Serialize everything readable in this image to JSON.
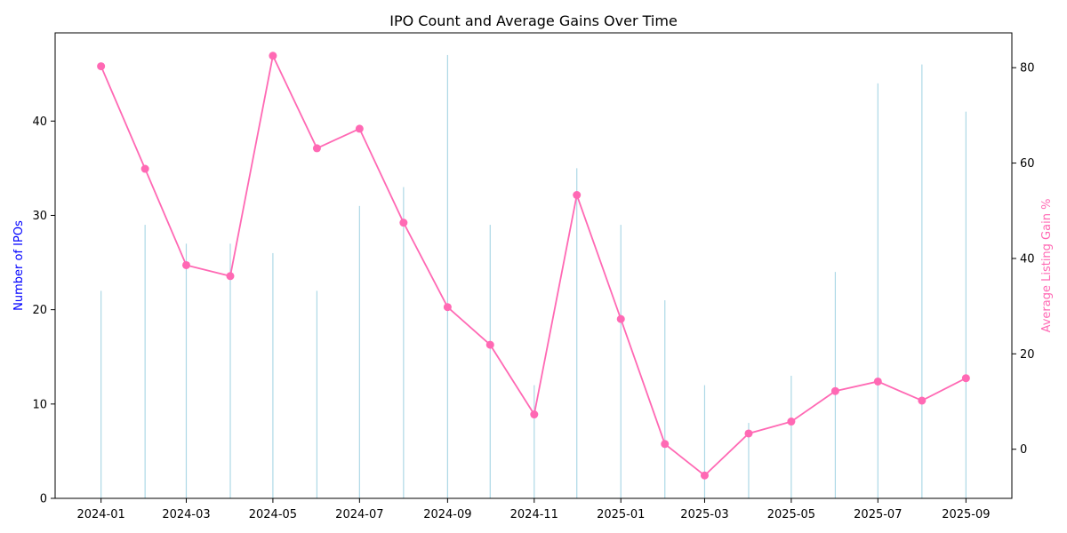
{
  "chart_data": {
    "type": "bar+line",
    "title": "IPO Count and Average Gains Over Time",
    "xlabel": "",
    "x": [
      "2024-01",
      "2024-02",
      "2024-03",
      "2024-04",
      "2024-05",
      "2024-06",
      "2024-07",
      "2024-08",
      "2024-09",
      "2024-10",
      "2024-11",
      "2024-12",
      "2025-01",
      "2025-02",
      "2025-03",
      "2025-04",
      "2025-05",
      "2025-06",
      "2025-07",
      "2025-08",
      "2025-09"
    ],
    "x_tick_labels": [
      "2024-01",
      "2024-03",
      "2024-05",
      "2024-07",
      "2024-09",
      "2024-11",
      "2025-01",
      "2025-03",
      "2025-05",
      "2025-07",
      "2025-09"
    ],
    "series": [
      {
        "axis": "left",
        "type": "bar",
        "color": "#add8e6",
        "values": [
          22,
          29,
          27,
          27,
          26,
          22,
          31,
          33,
          47,
          29,
          12,
          35,
          29,
          21,
          12,
          8,
          13,
          24,
          44,
          46,
          41
        ]
      },
      {
        "axis": "right",
        "type": "line",
        "color": "#ff69b4",
        "values": [
          80.3,
          58.8,
          38.6,
          36.3,
          82.5,
          63.1,
          67.2,
          47.5,
          29.8,
          21.9,
          7.3,
          53.3,
          27.3,
          1.1,
          -5.5,
          3.3,
          5.8,
          12.2,
          14.2,
          10.2,
          14.9
        ]
      }
    ],
    "y_left": {
      "label": "Number of IPOs",
      "label_color": "#0000ff",
      "ylim": [
        0,
        49.35
      ],
      "ticks": [
        0,
        10,
        20,
        30,
        40
      ]
    },
    "y_right": {
      "label": "Average Listing Gain %",
      "label_color": "#ff69b4",
      "ylim": [
        -10.3,
        87.3
      ],
      "ticks": [
        0,
        20,
        40,
        60,
        80
      ]
    },
    "grid": false,
    "legend": "none"
  }
}
